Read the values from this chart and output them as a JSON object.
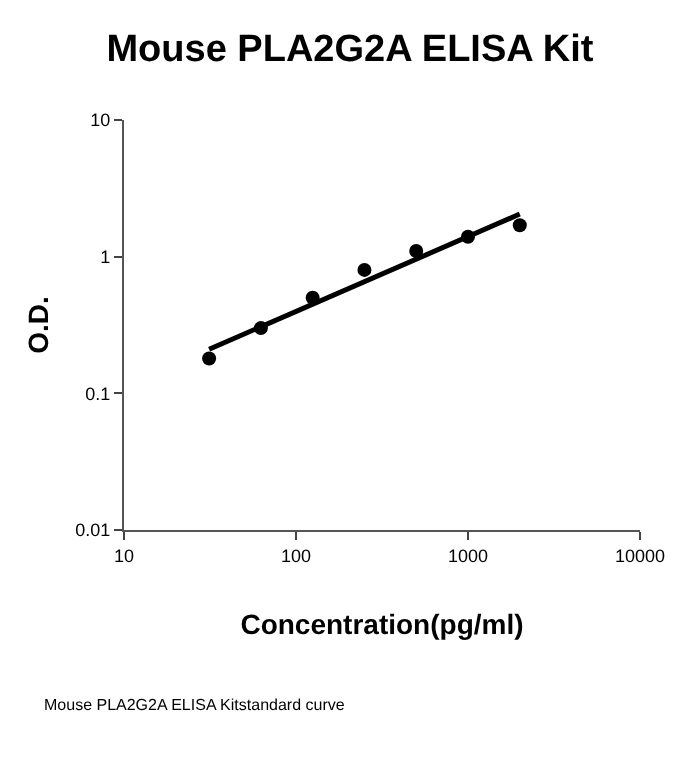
{
  "chart_data": {
    "type": "scatter",
    "title": "Mouse PLA2G2A ELISA Kit",
    "xlabel": "Concentration(pg/ml)",
    "ylabel": "O.D.",
    "log": "xy",
    "grid": false,
    "legend": false,
    "marker": "circle",
    "xlim": [
      10,
      10000
    ],
    "xticks": [
      10,
      100,
      1000,
      10000
    ],
    "ylim": [
      0.01,
      10
    ],
    "yticks": [
      0.01,
      0.1,
      1,
      10
    ],
    "x": [
      31.25,
      62.5,
      125,
      250,
      500,
      1000,
      2000
    ],
    "series": [
      {
        "color": "#000000",
        "values": [
          0.18,
          0.3,
          0.5,
          0.8,
          1.1,
          1.4,
          1.7
        ]
      },
      {
        "type": "line",
        "marker": "none",
        "color": "#000000",
        "x": [
          31.25,
          2000
        ],
        "values": [
          0.21,
          2.05
        ]
      }
    ],
    "annotations": [
      "Mouse PLA2G2A ELISA Kitstandard curve"
    ]
  }
}
